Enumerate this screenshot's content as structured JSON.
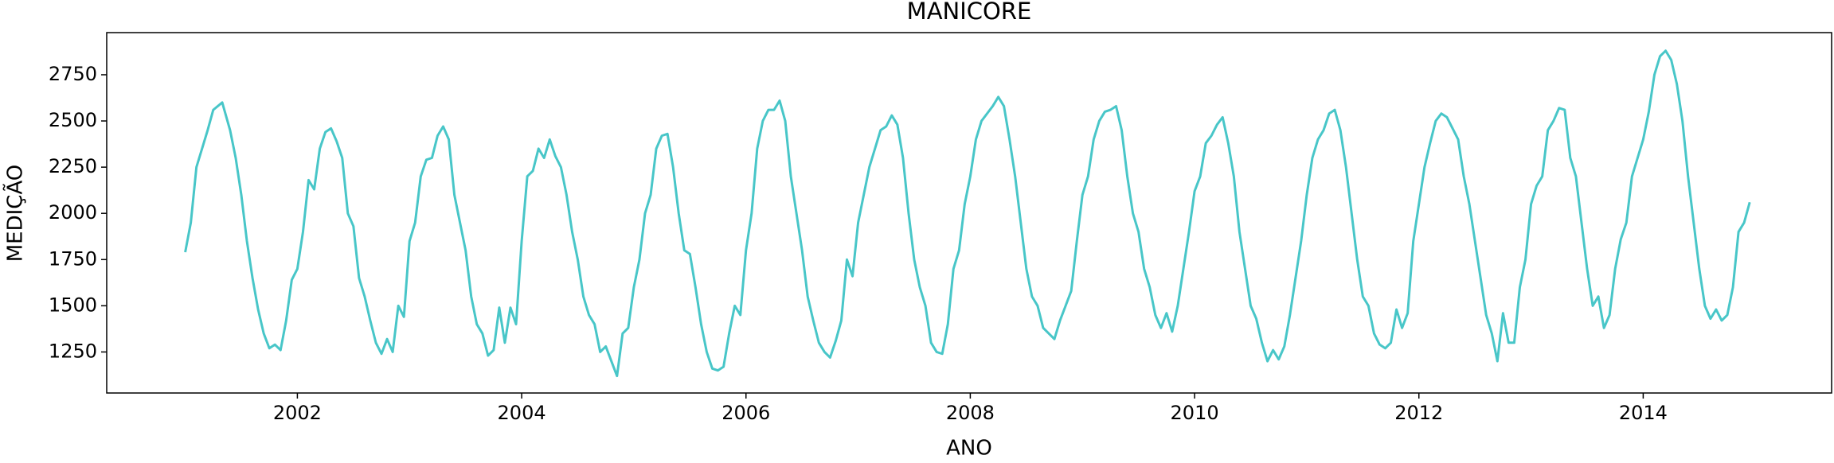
{
  "chart_data": {
    "type": "line",
    "title": "MANICORE",
    "x_label": "ANO",
    "y_label": "MEDIÇÃO",
    "xlim": [
      2000.3,
      2015.68
    ],
    "ylim": [
      1028,
      2978
    ],
    "xticks": [
      2002,
      2004,
      2006,
      2008,
      2010,
      2012,
      2014
    ],
    "yticks": [
      1250,
      1500,
      1750,
      2000,
      2250,
      2500,
      2750
    ],
    "grid": false,
    "series": [
      {
        "color": "#48c6c8",
        "x": [
          2001.0,
          2001.05,
          2001.1,
          2001.15,
          2001.2,
          2001.25,
          2001.33,
          2001.4,
          2001.45,
          2001.5,
          2001.55,
          2001.6,
          2001.65,
          2001.7,
          2001.75,
          2001.8,
          2001.85,
          2001.9,
          2001.95,
          2002.0,
          2002.05,
          2002.1,
          2002.15,
          2002.2,
          2002.25,
          2002.3,
          2002.35,
          2002.4,
          2002.45,
          2002.5,
          2002.55,
          2002.6,
          2002.65,
          2002.7,
          2002.75,
          2002.8,
          2002.85,
          2002.9,
          2002.95,
          2003.0,
          2003.05,
          2003.1,
          2003.15,
          2003.2,
          2003.25,
          2003.3,
          2003.35,
          2003.4,
          2003.45,
          2003.5,
          2003.55,
          2003.6,
          2003.65,
          2003.7,
          2003.75,
          2003.8,
          2003.85,
          2003.9,
          2003.95,
          2004.0,
          2004.05,
          2004.1,
          2004.15,
          2004.2,
          2004.25,
          2004.3,
          2004.35,
          2004.4,
          2004.45,
          2004.5,
          2004.55,
          2004.6,
          2004.65,
          2004.7,
          2004.75,
          2004.8,
          2004.85,
          2004.9,
          2004.95,
          2005.0,
          2005.05,
          2005.1,
          2005.15,
          2005.2,
          2005.25,
          2005.3,
          2005.35,
          2005.4,
          2005.45,
          2005.5,
          2005.55,
          2005.6,
          2005.65,
          2005.7,
          2005.75,
          2005.8,
          2005.85,
          2005.9,
          2005.95,
          2006.0,
          2006.05,
          2006.1,
          2006.15,
          2006.2,
          2006.25,
          2006.3,
          2006.35,
          2006.4,
          2006.45,
          2006.5,
          2006.55,
          2006.6,
          2006.65,
          2006.7,
          2006.75,
          2006.8,
          2006.85,
          2006.9,
          2006.95,
          2007.0,
          2007.05,
          2007.1,
          2007.15,
          2007.2,
          2007.25,
          2007.3,
          2007.35,
          2007.4,
          2007.45,
          2007.5,
          2007.55,
          2007.6,
          2007.65,
          2007.7,
          2007.75,
          2007.8,
          2007.85,
          2007.9,
          2007.95,
          2008.0,
          2008.05,
          2008.1,
          2008.15,
          2008.2,
          2008.25,
          2008.3,
          2008.35,
          2008.4,
          2008.45,
          2008.5,
          2008.55,
          2008.6,
          2008.65,
          2008.7,
          2008.75,
          2008.8,
          2008.85,
          2008.9,
          2008.95,
          2009.0,
          2009.05,
          2009.1,
          2009.15,
          2009.2,
          2009.25,
          2009.3,
          2009.35,
          2009.4,
          2009.45,
          2009.5,
          2009.55,
          2009.6,
          2009.65,
          2009.7,
          2009.75,
          2009.8,
          2009.85,
          2009.9,
          2009.95,
          2010.0,
          2010.05,
          2010.1,
          2010.15,
          2010.2,
          2010.25,
          2010.3,
          2010.35,
          2010.4,
          2010.45,
          2010.5,
          2010.55,
          2010.6,
          2010.65,
          2010.7,
          2010.75,
          2010.8,
          2010.85,
          2010.9,
          2010.95,
          2011.0,
          2011.05,
          2011.1,
          2011.15,
          2011.2,
          2011.25,
          2011.3,
          2011.35,
          2011.4,
          2011.45,
          2011.5,
          2011.55,
          2011.6,
          2011.65,
          2011.7,
          2011.75,
          2011.8,
          2011.85,
          2011.9,
          2011.95,
          2012.0,
          2012.05,
          2012.1,
          2012.15,
          2012.2,
          2012.25,
          2012.3,
          2012.35,
          2012.4,
          2012.45,
          2012.5,
          2012.55,
          2012.6,
          2012.65,
          2012.7,
          2012.75,
          2012.8,
          2012.85,
          2012.9,
          2012.95,
          2013.0,
          2013.05,
          2013.1,
          2013.15,
          2013.2,
          2013.25,
          2013.3,
          2013.35,
          2013.4,
          2013.45,
          2013.5,
          2013.55,
          2013.6,
          2013.65,
          2013.7,
          2013.75,
          2013.8,
          2013.85,
          2013.9,
          2013.95,
          2014.0,
          2014.05,
          2014.1,
          2014.15,
          2014.2,
          2014.25,
          2014.3,
          2014.35,
          2014.4,
          2014.45,
          2014.5,
          2014.55,
          2014.6,
          2014.65,
          2014.7,
          2014.75,
          2014.8,
          2014.85,
          2014.9,
          2014.95
        ],
        "values": [
          1790,
          1950,
          2250,
          2350,
          2450,
          2560,
          2600,
          2450,
          2300,
          2100,
          1850,
          1650,
          1480,
          1350,
          1270,
          1290,
          1260,
          1420,
          1640,
          1700,
          1900,
          2180,
          2130,
          2350,
          2440,
          2460,
          2390,
          2300,
          2000,
          1930,
          1650,
          1550,
          1420,
          1300,
          1240,
          1320,
          1250,
          1500,
          1440,
          1850,
          1950,
          2200,
          2290,
          2300,
          2420,
          2470,
          2400,
          2100,
          1950,
          1800,
          1550,
          1400,
          1350,
          1230,
          1260,
          1490,
          1300,
          1490,
          1400,
          1850,
          2200,
          2230,
          2350,
          2300,
          2400,
          2310,
          2250,
          2100,
          1900,
          1750,
          1550,
          1450,
          1400,
          1250,
          1280,
          1200,
          1120,
          1350,
          1380,
          1600,
          1750,
          2000,
          2100,
          2350,
          2420,
          2430,
          2250,
          2000,
          1800,
          1780,
          1600,
          1400,
          1250,
          1160,
          1150,
          1170,
          1350,
          1500,
          1450,
          1800,
          2000,
          2350,
          2500,
          2560,
          2560,
          2610,
          2500,
          2200,
          2000,
          1800,
          1550,
          1420,
          1300,
          1250,
          1220,
          1310,
          1420,
          1750,
          1660,
          1950,
          2100,
          2250,
          2350,
          2450,
          2470,
          2530,
          2480,
          2300,
          2000,
          1750,
          1600,
          1500,
          1300,
          1250,
          1240,
          1400,
          1700,
          1800,
          2050,
          2200,
          2400,
          2500,
          2540,
          2580,
          2630,
          2580,
          2400,
          2200,
          1950,
          1700,
          1550,
          1500,
          1380,
          1350,
          1320,
          1420,
          1500,
          1580,
          1850,
          2100,
          2200,
          2400,
          2500,
          2550,
          2560,
          2580,
          2450,
          2200,
          2000,
          1900,
          1700,
          1600,
          1450,
          1380,
          1460,
          1360,
          1500,
          1700,
          1900,
          2120,
          2200,
          2380,
          2420,
          2480,
          2520,
          2380,
          2200,
          1900,
          1700,
          1500,
          1430,
          1300,
          1200,
          1260,
          1210,
          1280,
          1450,
          1650,
          1850,
          2100,
          2300,
          2400,
          2450,
          2540,
          2560,
          2450,
          2250,
          2000,
          1750,
          1550,
          1500,
          1350,
          1290,
          1270,
          1300,
          1480,
          1380,
          1460,
          1850,
          2050,
          2250,
          2380,
          2500,
          2540,
          2520,
          2460,
          2400,
          2200,
          2050,
          1850,
          1650,
          1450,
          1350,
          1200,
          1460,
          1300,
          1300,
          1600,
          1750,
          2050,
          2150,
          2200,
          2450,
          2500,
          2570,
          2560,
          2300,
          2200,
          1950,
          1700,
          1500,
          1550,
          1380,
          1450,
          1700,
          1860,
          1950,
          2200,
          2300,
          2400,
          2550,
          2750,
          2850,
          2880,
          2830,
          2700,
          2500,
          2200,
          1950,
          1700,
          1500,
          1430,
          1480,
          1420,
          1450,
          1600,
          1900,
          1950,
          2060
        ]
      }
    ]
  }
}
